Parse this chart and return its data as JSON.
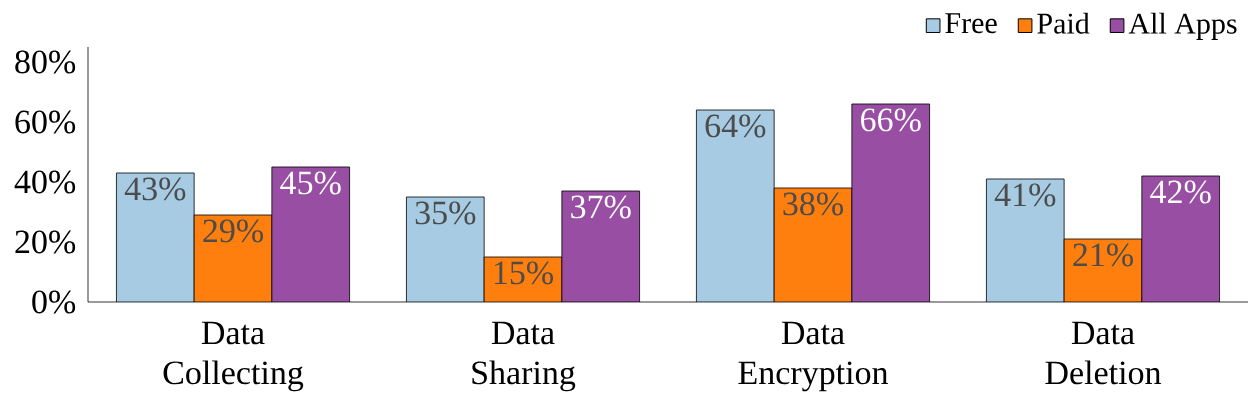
{
  "chart_data": {
    "type": "bar",
    "categories": [
      "Data Collecting",
      "Data Sharing",
      "Data Encryption",
      "Data Deletion"
    ],
    "series": [
      {
        "name": "Free",
        "color": "#a6cbe3",
        "values": [
          43,
          35,
          64,
          41
        ],
        "value_labels": [
          "43%",
          "35%",
          "64%",
          "41%"
        ]
      },
      {
        "name": "Paid",
        "color": "#ff7f0e",
        "values": [
          29,
          15,
          38,
          21
        ],
        "value_labels": [
          "29%",
          "15%",
          "38%",
          "21%"
        ]
      },
      {
        "name": "All Apps",
        "color": "#984ea3",
        "values": [
          45,
          37,
          66,
          42
        ],
        "value_labels": [
          "45%",
          "37%",
          "66%",
          "42%"
        ]
      }
    ],
    "ylim": [
      0,
      85
    ],
    "yticks": [
      {
        "value": 0,
        "label": "0%"
      },
      {
        "value": 20,
        "label": "20%"
      },
      {
        "value": 40,
        "label": "40%"
      },
      {
        "value": 60,
        "label": "60%"
      },
      {
        "value": 80,
        "label": "80%"
      }
    ],
    "grid": false,
    "legend": "top right"
  }
}
